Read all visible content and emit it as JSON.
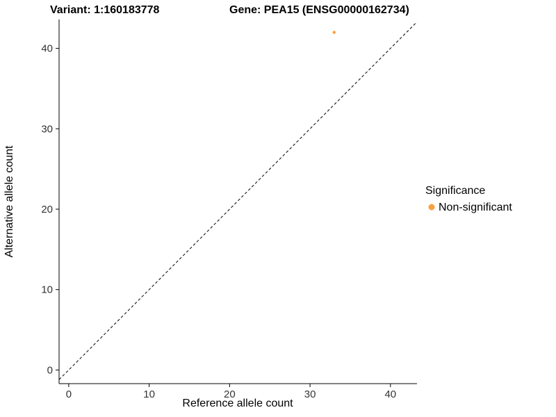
{
  "chart_data": {
    "type": "scatter",
    "titles": {
      "left": "Variant: 1:160183778",
      "right": "Gene: PEA15 (ENSG00000162734)"
    },
    "xlabel": "Reference allele count",
    "ylabel": "Alternative allele count",
    "xlim": [
      -1.2,
      43.3
    ],
    "ylim": [
      -1.7,
      43.6
    ],
    "xticks": [
      0,
      10,
      20,
      30,
      40
    ],
    "yticks": [
      0,
      10,
      20,
      30,
      40
    ],
    "grid": false,
    "background": "#ffffff",
    "identity_line": {
      "style": "dashed",
      "color": "#000000",
      "equation": "y = x"
    },
    "series": [
      {
        "name": "Non-significant",
        "color": "#F9A03C",
        "point_radius": 2.2,
        "points": [
          {
            "x": 33,
            "y": 42
          }
        ]
      }
    ],
    "legend": {
      "title": "Significance",
      "position": "right",
      "entries": [
        {
          "label": "Non-significant",
          "color": "#F9A03C"
        }
      ]
    }
  }
}
